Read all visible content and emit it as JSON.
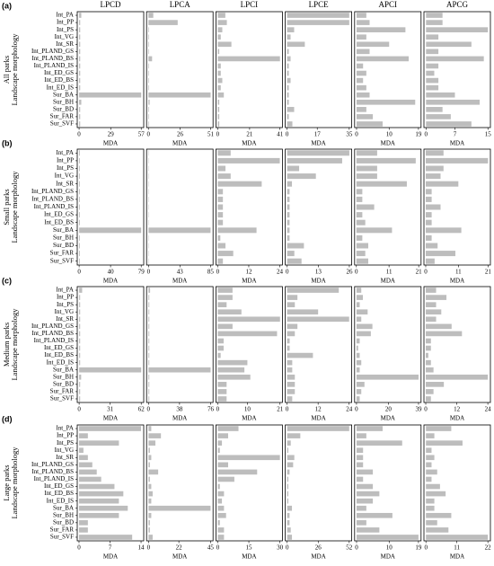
{
  "chart_data": {
    "type": "bar",
    "orientation": "horizontal",
    "color": "#bdbdbd",
    "columns": [
      "LPCD",
      "LPCA",
      "LPCI",
      "LPCE",
      "APCI",
      "APCG"
    ],
    "xlabel": "MDA",
    "ylabel": "Landscape morphology",
    "rows": [
      {
        "label": "(a)",
        "group": "All parks",
        "categories": [
          "Int_PA",
          "Int_PP",
          "Int_PS",
          "Int_VG",
          "Int_SR",
          "Int_PLAND_GS",
          "Int_PLAND_BS",
          "Int_PLAND_IS",
          "Int_ED_GS",
          "Int_ED_BS",
          "Int_ED_IS",
          "Sur_BA",
          "Sur_BH",
          "Sur_BD",
          "Sur_FAR",
          "Sur_SVF"
        ],
        "panels": [
          {
            "xlim": [
              -1.7,
              59.3
            ],
            "xticks": [
              0,
              29,
              57
            ],
            "values": [
              2,
              1,
              1,
              1,
              1,
              1,
              1,
              1,
              1,
              1,
              1,
              57,
              2,
              1,
              1,
              1
            ]
          },
          {
            "xlim": [
              -1.5,
              53
            ],
            "xticks": [
              0,
              26,
              51
            ],
            "values": [
              4,
              24,
              0.5,
              0.5,
              0.5,
              0.5,
              3,
              0.5,
              0.5,
              0.5,
              0.5,
              51,
              1,
              0.5,
              0.5,
              0.5
            ]
          },
          {
            "xlim": [
              -1.2,
              42.6
            ],
            "xticks": [
              0,
              21,
              41
            ],
            "values": [
              5,
              6,
              3,
              2,
              9,
              1,
              41,
              2,
              2,
              3,
              2,
              4,
              1,
              1,
              1,
              1
            ]
          },
          {
            "xlim": [
              -1,
              36.4
            ],
            "xticks": [
              0,
              17,
              35
            ],
            "values": [
              35,
              35,
              4,
              2,
              10,
              1,
              2,
              1,
              1,
              2,
              1,
              1,
              1,
              4,
              1,
              3
            ]
          },
          {
            "xlim": [
              -0.6,
              19.8
            ],
            "xticks": [
              0,
              10,
              19
            ],
            "values": [
              3,
              4,
              15,
              3,
              10,
              4,
              16,
              2,
              3,
              2,
              3,
              4,
              18,
              3,
              5,
              8
            ]
          },
          {
            "xlim": [
              -0.5,
              15.6
            ],
            "xticks": [
              0,
              7,
              15
            ],
            "values": [
              4,
              4,
              15,
              3,
              11,
              3,
              14,
              3,
              2,
              3,
              3,
              7,
              13,
              4,
              6,
              11
            ]
          }
        ]
      },
      {
        "label": "(b)",
        "group": "Small parks",
        "categories": [
          "Int_PA",
          "Int_PP",
          "Int_PS",
          "Int_VG",
          "Int_SR",
          "Int_PLAND_GS",
          "Int_PLAND_BS",
          "Int_PLAND_IS",
          "Int_ED_GS",
          "Int_ED_BS",
          "Sur_BA",
          "Sur_BH",
          "Sur_BD",
          "Sur_FAR",
          "Sur_SVF"
        ],
        "panels": [
          {
            "xlim": [
              -2.4,
              82.2
            ],
            "xticks": [
              0,
              40,
              79
            ],
            "values": [
              1,
              1,
              1,
              1,
              1,
              1,
              1,
              1,
              1,
              1,
              79,
              1,
              1,
              1,
              1
            ]
          },
          {
            "xlim": [
              -2.6,
              88.4
            ],
            "xticks": [
              0,
              43,
              85
            ],
            "values": [
              0.5,
              0.5,
              0.5,
              0.5,
              0.5,
              0.5,
              0.5,
              0.5,
              0.5,
              0.5,
              85,
              0.5,
              0.5,
              0.5,
              0.5
            ]
          },
          {
            "xlim": [
              -0.7,
              25
            ],
            "xticks": [
              0,
              12,
              24
            ],
            "values": [
              5,
              24,
              3,
              5,
              17,
              2,
              2,
              2,
              2,
              2,
              15,
              1,
              3,
              6,
              2
            ]
          },
          {
            "xlim": [
              -0.8,
              27
            ],
            "xticks": [
              0,
              13,
              26
            ],
            "values": [
              26,
              23,
              5,
              12,
              2,
              1,
              1,
              1,
              1,
              1,
              1,
              1,
              7,
              3,
              6
            ]
          },
          {
            "xlim": [
              -0.6,
              21.8
            ],
            "xticks": [
              0,
              11,
              21
            ],
            "values": [
              7,
              20,
              7,
              7,
              17,
              2,
              2,
              6,
              2,
              3,
              12,
              2,
              4,
              3,
              4
            ]
          },
          {
            "xlim": [
              -0.6,
              21.8
            ],
            "xticks": [
              0,
              11,
              21
            ],
            "values": [
              6,
              21,
              6,
              5,
              11,
              2,
              2,
              5,
              2,
              2,
              12,
              2,
              4,
              10,
              3
            ]
          }
        ]
      },
      {
        "label": "(c)",
        "group": "Medium parks",
        "categories": [
          "Int_PA",
          "Int_PP",
          "Int_PS",
          "Int_VG",
          "Int_SR",
          "Int_PLAND_GS",
          "Int_PLAND_BS",
          "Int_PLAND_IS",
          "Int_ED_GS",
          "Int_ED_BS",
          "Int_ED_IS",
          "Sur_BA",
          "Sur_BH",
          "Sur_BD",
          "Sur_FAR",
          "Sur_SVF"
        ],
        "panels": [
          {
            "xlim": [
              -1.9,
              64.5
            ],
            "xticks": [
              0,
              31,
              62
            ],
            "values": [
              3,
              1,
              1,
              1,
              1,
              1,
              1,
              1,
              1,
              1,
              1,
              62,
              2,
              1,
              1,
              1
            ]
          },
          {
            "xlim": [
              -2.3,
              79
            ],
            "xticks": [
              0,
              38,
              76
            ],
            "values": [
              2,
              1,
              1,
              1,
              1,
              1,
              1,
              1,
              1,
              1,
              1,
              76,
              1,
              1,
              1,
              1
            ]
          },
          {
            "xlim": [
              -0.6,
              21.8
            ],
            "xticks": [
              0,
              10,
              21
            ],
            "values": [
              5,
              5,
              3,
              8,
              21,
              5,
              20,
              2,
              2,
              1,
              10,
              9,
              11,
              3,
              3,
              3
            ]
          },
          {
            "xlim": [
              -0.7,
              25
            ],
            "xticks": [
              0,
              12,
              24
            ],
            "values": [
              20,
              4,
              3,
              12,
              24,
              4,
              3,
              1,
              1,
              10,
              2,
              2,
              3,
              3,
              3,
              2
            ]
          },
          {
            "xlim": [
              -1.2,
              40.6
            ],
            "xticks": [
              0,
              20,
              39
            ],
            "values": [
              3,
              4,
              2,
              7,
              3,
              10,
              9,
              2,
              1,
              2,
              3,
              2,
              39,
              5,
              3,
              2
            ]
          },
          {
            "xlim": [
              -0.7,
              25
            ],
            "xticks": [
              0,
              12,
              24
            ],
            "values": [
              4,
              8,
              4,
              6,
              4,
              10,
              14,
              2,
              2,
              1,
              2,
              3,
              24,
              7,
              3,
              2
            ]
          }
        ]
      },
      {
        "label": "(d)",
        "group": "Large parks",
        "categories": [
          "Int_PA",
          "Int_PP",
          "Int_PS",
          "Int_VG",
          "Int_SR",
          "Int_PLAND_GS",
          "Int_PLAND_BS",
          "Int_PLAND_IS",
          "Int_ED_GS",
          "Int_ED_BS",
          "Int_ED_IS",
          "Sur_BA",
          "Sur_BH",
          "Sur_BD",
          "Sur_FAR",
          "Sur_SVF"
        ],
        "panels": [
          {
            "xlim": [
              -0.4,
              14.6
            ],
            "xticks": [
              0,
              7,
              14
            ],
            "values": [
              14,
              2,
              9,
              1,
              2,
              3,
              4,
              5,
              8,
              10,
              9,
              11,
              9,
              2,
              2,
              12
            ]
          },
          {
            "xlim": [
              -1.4,
              46.8
            ],
            "xticks": [
              0,
              22,
              45
            ],
            "values": [
              2,
              9,
              5,
              1,
              2,
              1,
              7,
              1,
              2,
              3,
              2,
              45,
              2,
              1,
              1,
              3
            ]
          },
          {
            "xlim": [
              -0.9,
              31.2
            ],
            "xticks": [
              0,
              15,
              30
            ],
            "values": [
              10,
              5,
              2,
              1,
              30,
              5,
              19,
              8,
              1,
              3,
              2,
              3,
              4,
              1,
              3,
              3
            ]
          },
          {
            "xlim": [
              -1.6,
              54.1
            ],
            "xticks": [
              0,
              26,
              52
            ],
            "values": [
              52,
              11,
              3,
              1,
              6,
              5,
              2,
              1,
              1,
              1,
              1,
              4,
              2,
              2,
              3,
              4
            ]
          },
          {
            "xlim": [
              -0.6,
              19.8
            ],
            "xticks": [
              0,
              10,
              19
            ],
            "values": [
              8,
              3,
              14,
              2,
              2,
              2,
              5,
              2,
              5,
              7,
              5,
              3,
              11,
              3,
              7,
              19
            ]
          },
          {
            "xlim": [
              -0.7,
              22.9
            ],
            "xticks": [
              0,
              11,
              22
            ],
            "values": [
              9,
              3,
              13,
              2,
              3,
              2,
              4,
              2,
              5,
              7,
              3,
              3,
              9,
              4,
              8,
              22
            ]
          }
        ]
      }
    ]
  }
}
